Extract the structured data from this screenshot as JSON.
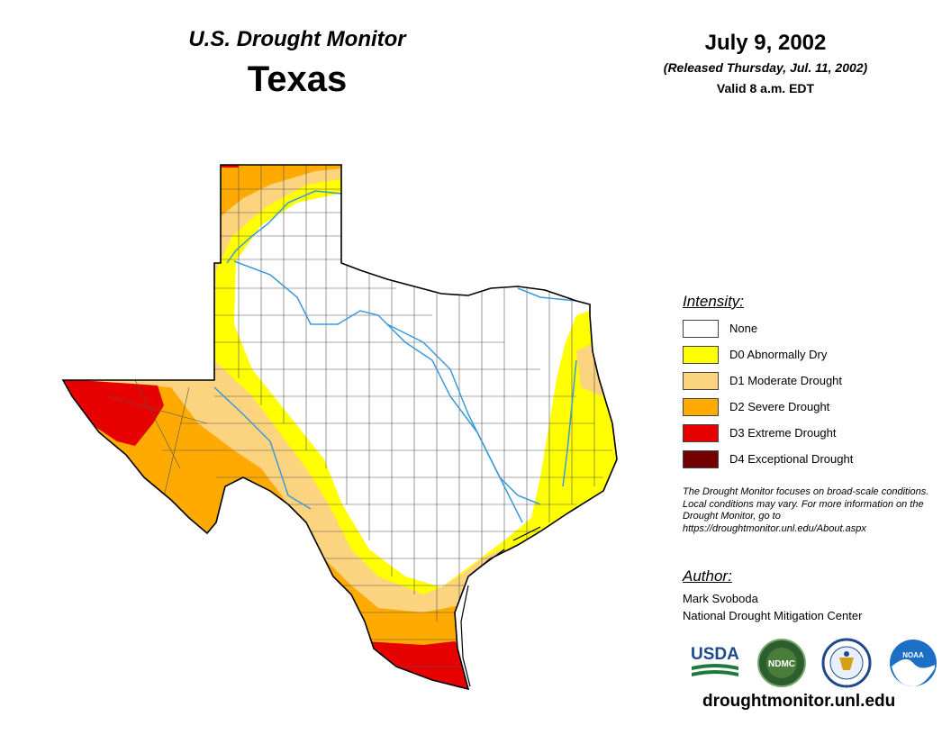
{
  "header": {
    "product": "U.S. Drought Monitor",
    "region": "Texas",
    "date": "July 9, 2002",
    "released": "(Released Thursday, Jul. 11, 2002)",
    "valid": "Valid 8 a.m. EDT"
  },
  "legend": {
    "title": "Intensity:",
    "items": [
      {
        "label": "None",
        "color": "#ffffff"
      },
      {
        "label": "D0 Abnormally Dry",
        "color": "#ffff00"
      },
      {
        "label": "D1 Moderate Drought",
        "color": "#fcd37f"
      },
      {
        "label": "D2 Severe Drought",
        "color": "#ffaa00"
      },
      {
        "label": "D3 Extreme Drought",
        "color": "#e60000"
      },
      {
        "label": "D4 Exceptional Drought",
        "color": "#730000"
      }
    ]
  },
  "disclaimer": "The Drought Monitor focuses on broad-scale conditions. Local conditions may vary. For more information on the Drought Monitor, go to https://droughtmonitor.unl.edu/About.aspx",
  "author": {
    "title": "Author:",
    "name": "Mark Svoboda",
    "org": "National Drought Mitigation Center"
  },
  "logos": {
    "usda": "USDA",
    "ndmc": "NDMC",
    "commerce_seal": "commerce-seal-icon",
    "noaa": "NOAA"
  },
  "footer": {
    "url": "droughtmonitor.unl.edu"
  },
  "map": {
    "colors": {
      "none": "#ffffff",
      "d0": "#ffff00",
      "d1": "#fcd37f",
      "d2": "#ffaa00",
      "d3": "#e60000",
      "river": "#3a9ad9",
      "boundary": "#000000",
      "county": "#555555"
    }
  }
}
